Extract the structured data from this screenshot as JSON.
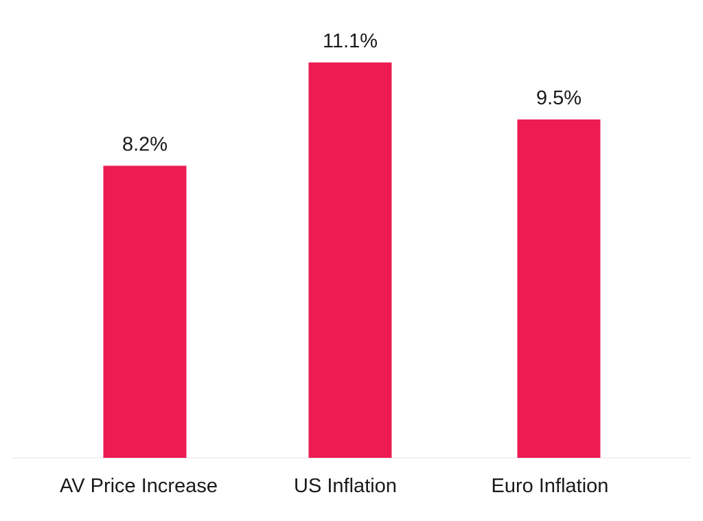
{
  "chart_data": {
    "type": "bar",
    "categories": [
      "AV Price Increase",
      "US Inflation",
      "Euro Inflation"
    ],
    "values": [
      8.2,
      11.1,
      9.5
    ],
    "value_labels": [
      "8.2%",
      "11.1%",
      "9.5%"
    ],
    "title": "",
    "xlabel": "",
    "ylabel": "",
    "ylim": [
      0,
      12
    ],
    "grid": false,
    "legend": "none",
    "bar_color": "#EC1C53",
    "baseline_color": "#F0F0F0"
  }
}
